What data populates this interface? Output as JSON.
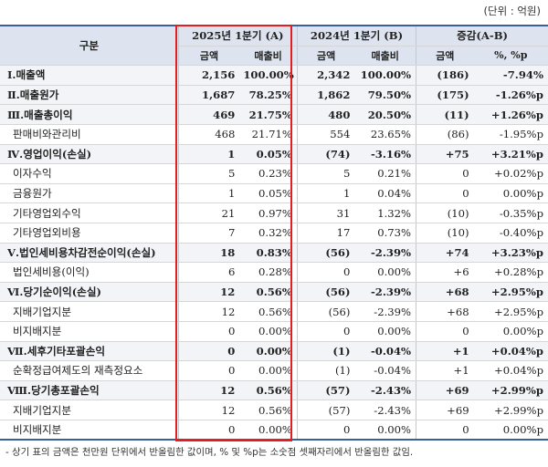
{
  "unit_label": "(단위 : 억원)",
  "header": {
    "category": "구분",
    "period_2025": "2025년 1분기 (A)",
    "period_2024": "2024년 1분기 (B)",
    "change": "증감(A-B)",
    "amount": "금액",
    "ratio": "매출비",
    "change_amount": "금액",
    "change_pct": "%, %p"
  },
  "rows": [
    {
      "label": "Ⅰ.매출액",
      "a_amt": "2,156",
      "a_ratio": "100.00%",
      "b_amt": "2,342",
      "b_ratio": "100.00%",
      "d_amt": "(186)",
      "d_pct": "-7.94%"
    },
    {
      "label": "Ⅱ.매출원가",
      "a_amt": "1,687",
      "a_ratio": "78.25%",
      "b_amt": "1,862",
      "b_ratio": "79.50%",
      "d_amt": "(175)",
      "d_pct": "-1.26%p"
    },
    {
      "label": "Ⅲ.매출총이익",
      "a_amt": "469",
      "a_ratio": "21.75%",
      "b_amt": "480",
      "b_ratio": "20.50%",
      "d_amt": "(11)",
      "d_pct": "+1.26%p"
    },
    {
      "label": "판매비와관리비",
      "a_amt": "468",
      "a_ratio": "21.71%",
      "b_amt": "554",
      "b_ratio": "23.65%",
      "d_amt": "(86)",
      "d_pct": "-1.95%p"
    },
    {
      "label": "Ⅳ.영업이익(손실)",
      "a_amt": "1",
      "a_ratio": "0.05%",
      "b_amt": "(74)",
      "b_ratio": "-3.16%",
      "d_amt": "+75",
      "d_pct": "+3.21%p"
    },
    {
      "label": "이자수익",
      "a_amt": "5",
      "a_ratio": "0.23%",
      "b_amt": "5",
      "b_ratio": "0.21%",
      "d_amt": "0",
      "d_pct": "+0.02%p"
    },
    {
      "label": "금융원가",
      "a_amt": "1",
      "a_ratio": "0.05%",
      "b_amt": "1",
      "b_ratio": "0.04%",
      "d_amt": "0",
      "d_pct": "0.00%p"
    },
    {
      "label": "기타영업외수익",
      "a_amt": "21",
      "a_ratio": "0.97%",
      "b_amt": "31",
      "b_ratio": "1.32%",
      "d_amt": "(10)",
      "d_pct": "-0.35%p"
    },
    {
      "label": "기타영업외비용",
      "a_amt": "7",
      "a_ratio": "0.32%",
      "b_amt": "17",
      "b_ratio": "0.73%",
      "d_amt": "(10)",
      "d_pct": "-0.40%p"
    },
    {
      "label": "Ⅴ.법인세비용차감전순이익(손실)",
      "a_amt": "18",
      "a_ratio": "0.83%",
      "b_amt": "(56)",
      "b_ratio": "-2.39%",
      "d_amt": "+74",
      "d_pct": "+3.23%p"
    },
    {
      "label": "법인세비용(이익)",
      "a_amt": "6",
      "a_ratio": "0.28%",
      "b_amt": "0",
      "b_ratio": "0.00%",
      "d_amt": "+6",
      "d_pct": "+0.28%p"
    },
    {
      "label": "Ⅵ.당기순이익(손실)",
      "a_amt": "12",
      "a_ratio": "0.56%",
      "b_amt": "(56)",
      "b_ratio": "-2.39%",
      "d_amt": "+68",
      "d_pct": "+2.95%p"
    },
    {
      "label": "지배기업지분",
      "a_amt": "12",
      "a_ratio": "0.56%",
      "b_amt": "(56)",
      "b_ratio": "-2.39%",
      "d_amt": "+68",
      "d_pct": "+2.95%p"
    },
    {
      "label": "비지배지분",
      "a_amt": "0",
      "a_ratio": "0.00%",
      "b_amt": "0",
      "b_ratio": "0.00%",
      "d_amt": "0",
      "d_pct": "0.00%p"
    },
    {
      "label": "Ⅶ.세후기타포괄손익",
      "a_amt": "0",
      "a_ratio": "0.00%",
      "b_amt": "(1)",
      "b_ratio": "-0.04%",
      "d_amt": "+1",
      "d_pct": "+0.04%p"
    },
    {
      "label": "순확정급여제도의 재측정요소",
      "a_amt": "0",
      "a_ratio": "0.00%",
      "b_amt": "(1)",
      "b_ratio": "-0.04%",
      "d_amt": "+1",
      "d_pct": "+0.04%p"
    },
    {
      "label": "Ⅷ.당기총포괄손익",
      "a_amt": "12",
      "a_ratio": "0.56%",
      "b_amt": "(57)",
      "b_ratio": "-2.43%",
      "d_amt": "+69",
      "d_pct": "+2.99%p"
    },
    {
      "label": "지배기업지분",
      "a_amt": "12",
      "a_ratio": "0.56%",
      "b_amt": "(57)",
      "b_ratio": "-2.43%",
      "d_amt": "+69",
      "d_pct": "+2.99%p"
    },
    {
      "label": "비지배지분",
      "a_amt": "0",
      "a_ratio": "0.00%",
      "b_amt": "0",
      "b_ratio": "0.00%",
      "d_amt": "0",
      "d_pct": "0.00%p"
    }
  ],
  "footnote": "- 상기 표의 금액은 천만원 단위에서 반올림한 값이며, % 및 %p는 소숫점 셋째자리에서 반올림한 값임."
}
